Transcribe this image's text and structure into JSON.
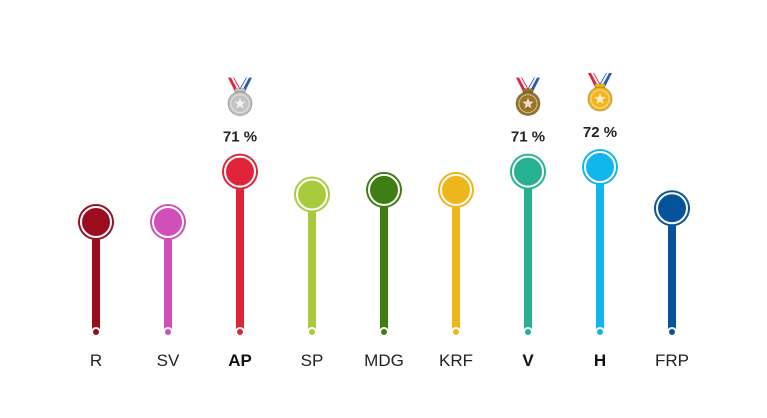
{
  "chart_data": {
    "type": "lollipop",
    "ylim": [
      0,
      100
    ],
    "grid": false,
    "legend": "none",
    "categories": [
      "R",
      "SV",
      "AP",
      "SP",
      "MDG",
      "KRF",
      "V",
      "H",
      "FRP"
    ],
    "values": [
      60,
      60,
      71,
      66,
      67,
      67,
      71,
      72,
      63
    ],
    "colors": [
      "#9a0d1e",
      "#d14fb8",
      "#e1243a",
      "#a7cb3a",
      "#3f7e12",
      "#eeb61b",
      "#26b190",
      "#10b6ec",
      "#05549b"
    ],
    "bold": [
      false,
      false,
      true,
      false,
      false,
      false,
      true,
      true,
      false
    ],
    "medals": [
      "",
      "",
      "silver",
      "",
      "",
      "",
      "bronze",
      "gold",
      ""
    ],
    "medal_colors": {
      "gold": "#f2b51e",
      "silver": "#c2c2c2",
      "bronze": "#9a7424"
    },
    "value_labels": [
      "",
      "",
      "71 %",
      "",
      "",
      "",
      "71 %",
      "72 %",
      ""
    ]
  }
}
